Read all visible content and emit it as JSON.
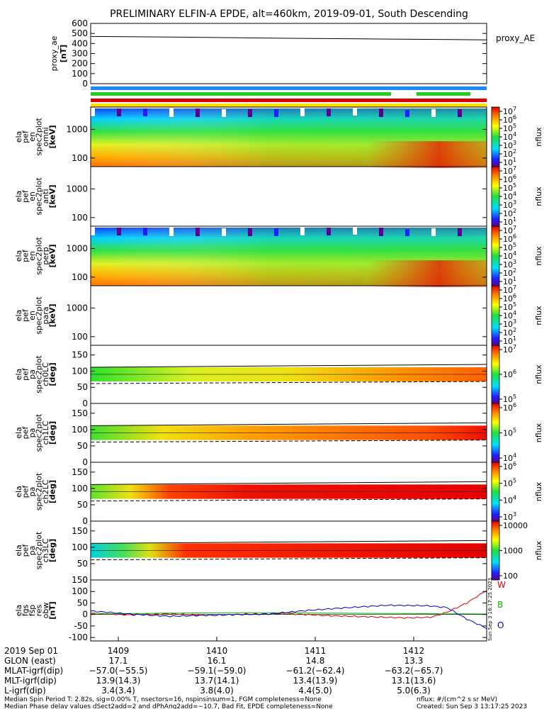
{
  "title": "PRELIMINARY ELFIN-A EPDE, alt=460km, 2019-09-01, South Descending",
  "panels": [
    {
      "id": "proxy_ae",
      "ylabel": [
        "proxy_ae",
        "[nT]"
      ],
      "yticks": [
        "600",
        "500",
        "400",
        "300",
        "200",
        "100",
        "0"
      ],
      "right_label": "proxy_AE"
    },
    {
      "id": "omni",
      "ylabel": [
        "ela",
        "pef",
        "en",
        "spec2plot",
        "omni",
        "[keV]"
      ],
      "yticks": [
        "1000",
        "100"
      ],
      "cbar_ticks": [
        "10",
        "10",
        "10",
        "10",
        "10",
        "10",
        "10"
      ],
      "cbar_exps": [
        "7",
        "6",
        "5",
        "4",
        "3",
        "2",
        "1"
      ],
      "cbar_label": "nflux"
    },
    {
      "id": "anti",
      "ylabel": [
        "ela",
        "pef",
        "en",
        "spec2plot",
        "anti",
        "[keV]"
      ],
      "yticks": [
        "1000",
        "100"
      ],
      "cbar_ticks": [
        "10",
        "10",
        "10",
        "10",
        "10",
        "10",
        "10"
      ],
      "cbar_exps": [
        "7",
        "6",
        "5",
        "4",
        "3",
        "2",
        "1"
      ],
      "cbar_label": "nflux"
    },
    {
      "id": "perp",
      "ylabel": [
        "ela",
        "pef",
        "en",
        "spec2plot",
        "perp",
        "[keV]"
      ],
      "yticks": [
        "1000",
        "100"
      ],
      "cbar_ticks": [
        "10",
        "10",
        "10",
        "10",
        "10",
        "10",
        "10"
      ],
      "cbar_exps": [
        "7",
        "6",
        "5",
        "4",
        "3",
        "2",
        "1"
      ],
      "cbar_label": "nflux"
    },
    {
      "id": "para",
      "ylabel": [
        "ela",
        "pef",
        "en",
        "spec2plot",
        "para",
        "[keV]"
      ],
      "yticks": [
        "1000",
        "100"
      ],
      "cbar_ticks": [
        "10",
        "10",
        "10",
        "10",
        "10",
        "10",
        "10"
      ],
      "cbar_exps": [
        "7",
        "6",
        "5",
        "4",
        "3",
        "2",
        "1"
      ],
      "cbar_label": "nflux"
    },
    {
      "id": "ch0LC",
      "ylabel": [
        "ela",
        "pef",
        "pa",
        "spec2plot",
        "ch0LC",
        "[deg]"
      ],
      "yticks": [
        "150",
        "100",
        "50",
        "0"
      ],
      "cbar_ticks": [
        "10",
        "10",
        "10"
      ],
      "cbar_exps": [
        "7",
        "6",
        "5"
      ],
      "cbar_label": "nflux"
    },
    {
      "id": "ch1LC",
      "ylabel": [
        "ela",
        "pef",
        "pa",
        "spec2plot",
        "ch1LC",
        "[deg]"
      ],
      "yticks": [
        "150",
        "100",
        "50",
        "0"
      ],
      "cbar_ticks": [
        "10",
        "10",
        "10"
      ],
      "cbar_exps": [
        "6",
        "5",
        "4"
      ],
      "cbar_label": "nflux"
    },
    {
      "id": "ch2LC",
      "ylabel": [
        "ela",
        "pef",
        "pa",
        "spec2plot",
        "ch2LC",
        "[deg]"
      ],
      "yticks": [
        "150",
        "100",
        "50",
        "0"
      ],
      "cbar_ticks": [
        "10",
        "10",
        "10",
        "10"
      ],
      "cbar_exps": [
        "6",
        "5",
        "4",
        "3"
      ],
      "cbar_label": "nflux"
    },
    {
      "id": "ch3LC",
      "ylabel": [
        "ela",
        "pef",
        "pa",
        "spec2plot",
        "ch3LC",
        "[deg]"
      ],
      "yticks": [
        "150",
        "100",
        "50",
        "0"
      ],
      "cbar_ticks": [
        "10000",
        "1000",
        "100"
      ],
      "cbar_exps": [
        "",
        "",
        ""
      ],
      "cbar_label": "nflux"
    },
    {
      "id": "fgs",
      "ylabel": [
        "ela",
        "fgs",
        "fsp",
        "res",
        "obw",
        "[nT]"
      ],
      "yticks": [
        "150",
        "100",
        "50",
        "0",
        "-50",
        "-100"
      ],
      "legend": [
        "W",
        "B",
        "O"
      ]
    }
  ],
  "colors": {
    "W": "#dd0000",
    "B": "#00bb00",
    "O": "#0000cc",
    "bar_blue": "#1a8cff",
    "bar_green": "#22cc22",
    "bar_red": "#dd0000",
    "bar_yellow": "#ffdd00"
  },
  "side_stamp": "Sun Sep  3 16:17:25 2023",
  "xaxis": {
    "row_labels": [
      "2019 Sep 01",
      "GLON (east)",
      "MLAT-igrf(dip)",
      "MLT-igrf(dip)",
      "L-igrf(dip)"
    ],
    "ticks": [
      {
        "time": "1409",
        "glon": "17.1",
        "mlat": "−57.0(−55.5)",
        "mlt": "13.9(14.3)",
        "l": "3.4(3.4)"
      },
      {
        "time": "1410",
        "glon": "16.1",
        "mlat": "−59.1(−59.0)",
        "mlt": "13.7(14.1)",
        "l": "3.8(4.0)"
      },
      {
        "time": "1411",
        "glon": "14.8",
        "mlat": "−61.2(−62.4)",
        "mlt": "13.4(13.9)",
        "l": "4.4(5.0)"
      },
      {
        "time": "1412",
        "glon": "13.3",
        "mlat": "−63.2(−65.7)",
        "mlt": "13.1(13.6)",
        "l": "5.0(6.3)"
      }
    ]
  },
  "footer": {
    "line1": "Median Spin Period T: 2.82s, sig=0.00% T, nsectors=16, nspinsinsum=1, FGM completeness=None",
    "line2": "Median Phase delay values dSect2add=2 and dPhAng2add=−10.7, Bad Fit, EPDE completeness=None",
    "units": "nflux: #/(cm^2 s sr MeV)",
    "created": "Created: Sun Sep  3 13:17:25 2023"
  },
  "chart_data": [
    {
      "type": "line",
      "id": "proxy_ae",
      "ylim": [
        0,
        600
      ],
      "x": [
        0,
        0.25,
        0.5,
        0.75,
        1.0
      ],
      "values": [
        470,
        462,
        452,
        444,
        436
      ]
    },
    {
      "type": "heatmap",
      "id": "omni",
      "yscale": "log",
      "ylim": [
        50,
        6000
      ],
      "zscale": "log",
      "zlim": [
        10,
        10000000.0
      ]
    },
    {
      "type": "heatmap",
      "id": "anti",
      "yscale": "log",
      "ylim": [
        50,
        6000
      ],
      "empty": true
    },
    {
      "type": "heatmap",
      "id": "perp",
      "yscale": "log",
      "ylim": [
        50,
        6000
      ],
      "zscale": "log",
      "zlim": [
        10,
        10000000.0
      ]
    },
    {
      "type": "heatmap",
      "id": "para",
      "yscale": "log",
      "ylim": [
        50,
        6000
      ],
      "empty": true
    },
    {
      "type": "heatmap",
      "id": "ch0LC",
      "ylim": [
        0,
        180
      ],
      "band": [
        68,
        112
      ],
      "lc_solid": 112,
      "lc_dashed": 68
    },
    {
      "type": "heatmap",
      "id": "ch1LC",
      "ylim": [
        0,
        180
      ],
      "band": [
        68,
        112
      ],
      "lc_solid": 112,
      "lc_dashed": 68
    },
    {
      "type": "heatmap",
      "id": "ch2LC",
      "ylim": [
        0,
        180
      ],
      "band": [
        68,
        112
      ],
      "lc_solid": 112,
      "lc_dashed": 68
    },
    {
      "type": "heatmap",
      "id": "ch3LC",
      "ylim": [
        0,
        180
      ],
      "band": [
        68,
        112
      ],
      "lc_solid": 112,
      "lc_dashed": 68
    },
    {
      "type": "line",
      "id": "fgs",
      "ylim": [
        -115,
        150
      ],
      "series": [
        {
          "name": "W",
          "x": [
            0,
            0.1,
            0.2,
            0.3,
            0.4,
            0.5,
            0.6,
            0.7,
            0.8,
            0.86,
            0.9,
            0.95,
            1.0
          ],
          "values": [
            5,
            -2,
            3,
            -4,
            2,
            3,
            -5,
            -10,
            -15,
            -12,
            10,
            50,
            105
          ]
        },
        {
          "name": "B",
          "x": [
            0,
            0.2,
            0.4,
            0.6,
            0.8,
            0.9,
            1.0
          ],
          "values": [
            2,
            6,
            8,
            6,
            4,
            3,
            2
          ]
        },
        {
          "name": "O",
          "x": [
            0,
            0.1,
            0.2,
            0.3,
            0.45,
            0.55,
            0.65,
            0.75,
            0.85,
            0.9,
            0.95,
            1.0
          ],
          "values": [
            15,
            2,
            -8,
            -3,
            2,
            18,
            30,
            40,
            38,
            30,
            -20,
            -60
          ]
        }
      ]
    }
  ]
}
